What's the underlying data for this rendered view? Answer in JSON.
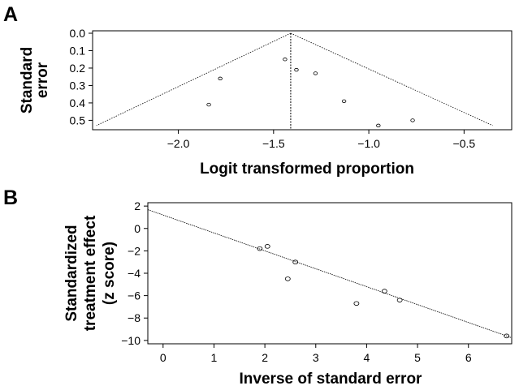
{
  "chart_data": [
    {
      "panel": "A",
      "type": "scatter",
      "xlabel": "Logit transformed proportion",
      "ylabel": [
        "Standard",
        "error"
      ],
      "xlim": [
        -2.45,
        -0.25
      ],
      "ylim": [
        0.0,
        0.54
      ],
      "y_reversed": true,
      "xticks": [
        "-2.0",
        "-1.5",
        "-1.0",
        "-0.5"
      ],
      "yticks": [
        "0.0",
        "0.1",
        "0.2",
        "0.3",
        "0.4",
        "0.5"
      ],
      "grid": false,
      "points": [
        {
          "x": -1.44,
          "y": 0.15
        },
        {
          "x": -1.38,
          "y": 0.21
        },
        {
          "x": -1.78,
          "y": 0.26
        },
        {
          "x": -1.28,
          "y": 0.23
        },
        {
          "x": -1.84,
          "y": 0.41
        },
        {
          "x": -1.13,
          "y": 0.39
        },
        {
          "x": -0.95,
          "y": 0.53
        },
        {
          "x": -0.77,
          "y": 0.5
        }
      ],
      "pooled_estimate": -1.41,
      "funnel_bottom_se": 0.53,
      "funnel_left_x": -2.43,
      "funnel_right_x": -0.35
    },
    {
      "panel": "B",
      "type": "scatter",
      "xlabel": "Inverse of standard error",
      "ylabel": [
        "Standardized",
        "treatment effect",
        "(z score)"
      ],
      "xlim": [
        -0.3,
        6.85
      ],
      "ylim": [
        -10.3,
        2.3
      ],
      "xticks": [
        "0",
        "1",
        "2",
        "3",
        "4",
        "5",
        "6"
      ],
      "yticks": [
        "2",
        "0",
        "-2",
        "-4",
        "-6",
        "-8",
        "-10"
      ],
      "grid": false,
      "points": [
        {
          "x": 1.9,
          "y": -1.8
        },
        {
          "x": 2.05,
          "y": -1.6
        },
        {
          "x": 2.6,
          "y": -3.0
        },
        {
          "x": 2.45,
          "y": -4.5
        },
        {
          "x": 3.8,
          "y": -6.7
        },
        {
          "x": 4.35,
          "y": -5.6
        },
        {
          "x": 4.65,
          "y": -6.4
        },
        {
          "x": 6.75,
          "y": -9.6
        }
      ],
      "regression": {
        "intercept": 1.2,
        "slope": -1.6
      }
    }
  ]
}
